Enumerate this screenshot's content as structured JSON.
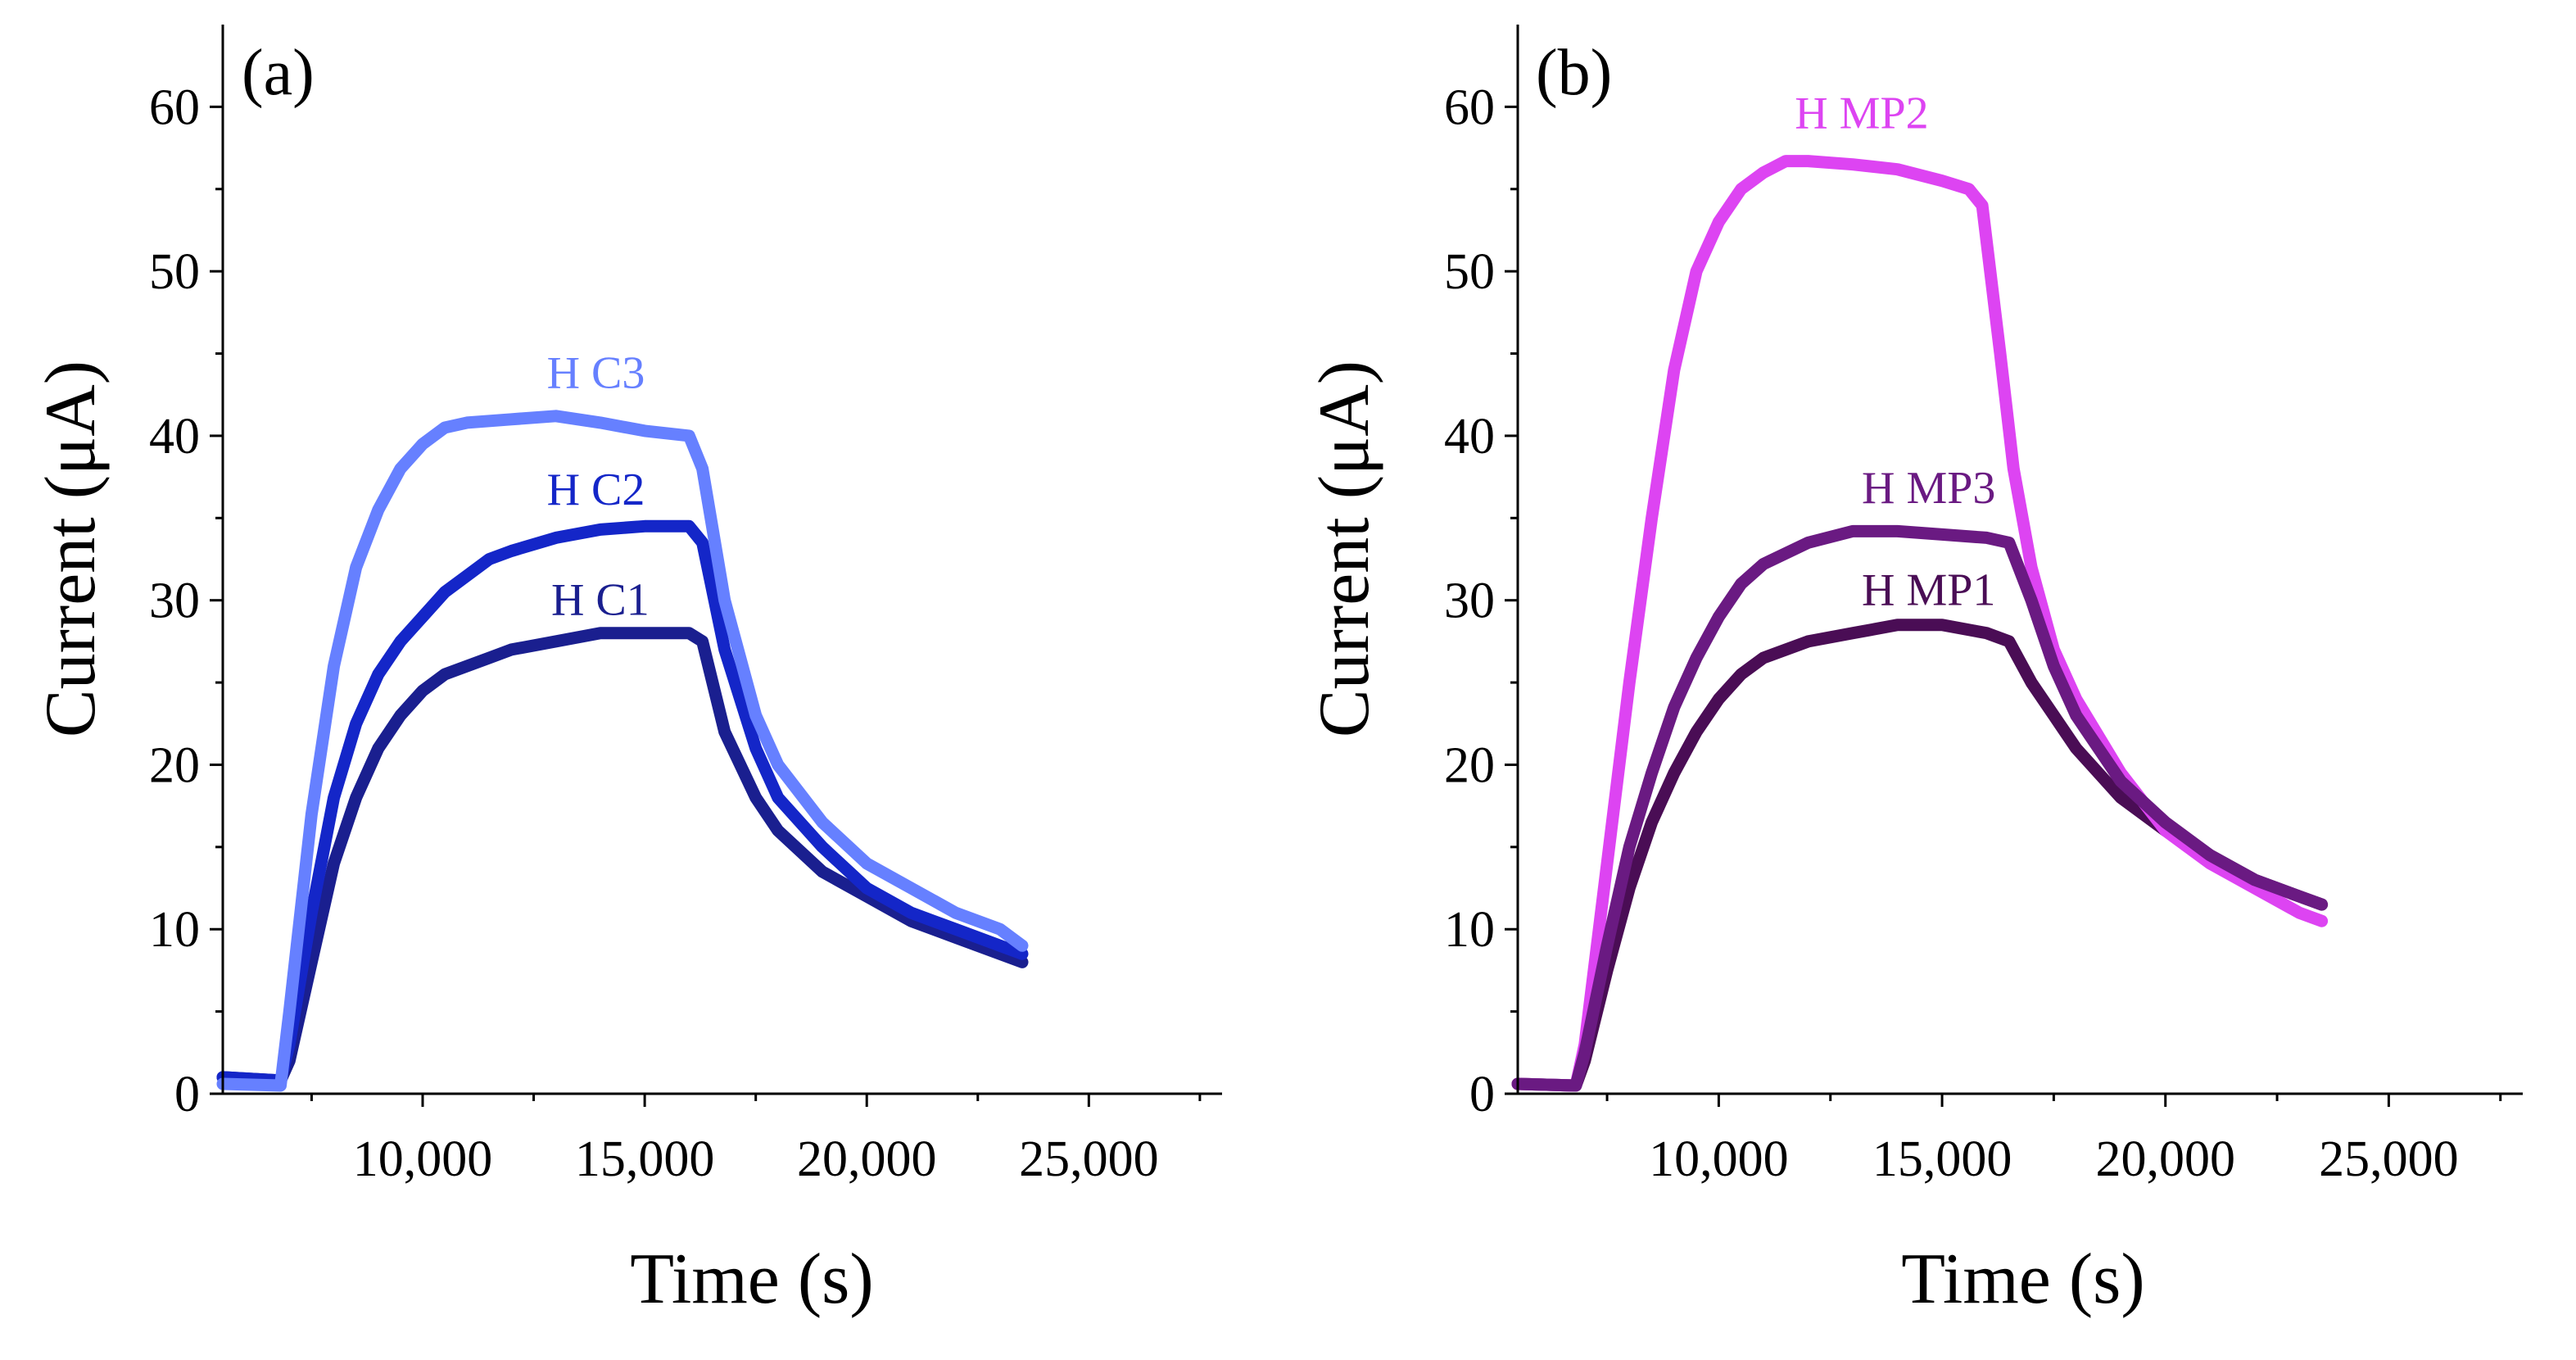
{
  "chart_data": [
    {
      "type": "line",
      "panel_label": "(a)",
      "xlabel": "Time (s)",
      "ylabel": "Current (μA)",
      "xlim": [
        5500,
        28000
      ],
      "ylim": [
        0,
        65
      ],
      "xticks": [
        10000,
        15000,
        20000,
        25000
      ],
      "xtick_labels": [
        "10,000",
        "15,000",
        "20,000",
        "25,000"
      ],
      "yticks": [
        0,
        10,
        20,
        30,
        40,
        50,
        60
      ],
      "ytick_labels": [
        "0",
        "10",
        "20",
        "30",
        "40",
        "50",
        "60"
      ],
      "grid": false,
      "legend": "none",
      "series": [
        {
          "name": "H C1",
          "color": "#1a1f8f",
          "label_at": [
            14000,
            30
          ],
          "points": [
            [
              5500,
              1.0
            ],
            [
              6800,
              0.8
            ],
            [
              7000,
              2
            ],
            [
              7500,
              8
            ],
            [
              8000,
              14
            ],
            [
              8500,
              18
            ],
            [
              9000,
              21
            ],
            [
              9500,
              23
            ],
            [
              10000,
              24.5
            ],
            [
              10500,
              25.5
            ],
            [
              11000,
              26
            ],
            [
              11500,
              26.5
            ],
            [
              12000,
              27
            ],
            [
              13000,
              27.5
            ],
            [
              14000,
              28
            ],
            [
              15000,
              28
            ],
            [
              16000,
              28
            ],
            [
              16300,
              27.5
            ],
            [
              16800,
              22
            ],
            [
              17500,
              18
            ],
            [
              18000,
              16
            ],
            [
              19000,
              13.5
            ],
            [
              20000,
              12
            ],
            [
              21000,
              10.5
            ],
            [
              22000,
              9.5
            ],
            [
              23000,
              8.5
            ],
            [
              23500,
              8
            ]
          ]
        },
        {
          "name": "H C2",
          "color": "#1426c8",
          "label_at": [
            13900,
            36.7
          ],
          "points": [
            [
              5500,
              1.0
            ],
            [
              6800,
              0.8
            ],
            [
              7000,
              3
            ],
            [
              7500,
              11
            ],
            [
              8000,
              18
            ],
            [
              8500,
              22.5
            ],
            [
              9000,
              25.5
            ],
            [
              9500,
              27.5
            ],
            [
              10000,
              29
            ],
            [
              10500,
              30.5
            ],
            [
              11000,
              31.5
            ],
            [
              11500,
              32.5
            ],
            [
              12000,
              33
            ],
            [
              13000,
              33.8
            ],
            [
              14000,
              34.3
            ],
            [
              15000,
              34.5
            ],
            [
              16000,
              34.5
            ],
            [
              16300,
              33.5
            ],
            [
              16800,
              27
            ],
            [
              17500,
              21
            ],
            [
              18000,
              18
            ],
            [
              19000,
              15
            ],
            [
              20000,
              12.5
            ],
            [
              21000,
              11
            ],
            [
              22000,
              10
            ],
            [
              23000,
              9
            ],
            [
              23500,
              8.5
            ]
          ]
        },
        {
          "name": "H C3",
          "color": "#6680ff",
          "label_at": [
            13900,
            43.8
          ],
          "points": [
            [
              5500,
              0.6
            ],
            [
              6800,
              0.5
            ],
            [
              7000,
              5
            ],
            [
              7500,
              17
            ],
            [
              8000,
              26
            ],
            [
              8500,
              32
            ],
            [
              9000,
              35.5
            ],
            [
              9500,
              38
            ],
            [
              10000,
              39.5
            ],
            [
              10500,
              40.5
            ],
            [
              11000,
              40.8
            ],
            [
              12000,
              41
            ],
            [
              13000,
              41.2
            ],
            [
              14000,
              40.8
            ],
            [
              15000,
              40.3
            ],
            [
              16000,
              40
            ],
            [
              16300,
              38
            ],
            [
              16800,
              30
            ],
            [
              17500,
              23
            ],
            [
              18000,
              20
            ],
            [
              19000,
              16.5
            ],
            [
              20000,
              14
            ],
            [
              21000,
              12.5
            ],
            [
              22000,
              11
            ],
            [
              23000,
              10
            ],
            [
              23500,
              9
            ]
          ]
        }
      ]
    },
    {
      "type": "line",
      "panel_label": "(b)",
      "xlabel": "Time (s)",
      "ylabel": "Current (μA)",
      "xlim": [
        5500,
        28000
      ],
      "ylim": [
        0,
        65
      ],
      "xticks": [
        10000,
        15000,
        20000,
        25000
      ],
      "xtick_labels": [
        "10,000",
        "15,000",
        "20,000",
        "25,000"
      ],
      "yticks": [
        0,
        10,
        20,
        30,
        40,
        50,
        60
      ],
      "ytick_labels": [
        "0",
        "10",
        "20",
        "30",
        "40",
        "50",
        "60"
      ],
      "grid": false,
      "legend": "none",
      "series": [
        {
          "name": "H MP1",
          "color": "#4a0d55",
          "label_at": [
            14700,
            30.6
          ],
          "points": [
            [
              5500,
              0.6
            ],
            [
              6800,
              0.5
            ],
            [
              7000,
              2
            ],
            [
              7500,
              7.5
            ],
            [
              8000,
              12.5
            ],
            [
              8500,
              16.5
            ],
            [
              9000,
              19.5
            ],
            [
              9500,
              22
            ],
            [
              10000,
              24
            ],
            [
              10500,
              25.5
            ],
            [
              11000,
              26.5
            ],
            [
              12000,
              27.5
            ],
            [
              13000,
              28
            ],
            [
              14000,
              28.5
            ],
            [
              15000,
              28.5
            ],
            [
              16000,
              28
            ],
            [
              16500,
              27.5
            ],
            [
              17000,
              25
            ],
            [
              17500,
              23
            ],
            [
              18000,
              21
            ],
            [
              19000,
              18
            ],
            [
              20000,
              16
            ],
            [
              21000,
              14.5
            ],
            [
              22000,
              13
            ],
            [
              23000,
              12
            ],
            [
              23500,
              11.5
            ]
          ]
        },
        {
          "name": "H MP2",
          "color": "#dd44f2",
          "label_at": [
            13200,
            59.6
          ],
          "points": [
            [
              5500,
              0.6
            ],
            [
              6800,
              0.5
            ],
            [
              7000,
              3
            ],
            [
              7500,
              14
            ],
            [
              8000,
              25
            ],
            [
              8500,
              35
            ],
            [
              9000,
              44
            ],
            [
              9500,
              50
            ],
            [
              10000,
              53
            ],
            [
              10500,
              55
            ],
            [
              11000,
              56
            ],
            [
              11500,
              56.7
            ],
            [
              12000,
              56.7
            ],
            [
              13000,
              56.5
            ],
            [
              14000,
              56.2
            ],
            [
              15000,
              55.5
            ],
            [
              15600,
              55
            ],
            [
              15900,
              54
            ],
            [
              16300,
              45
            ],
            [
              16600,
              38
            ],
            [
              17000,
              32
            ],
            [
              17500,
              27
            ],
            [
              18000,
              24
            ],
            [
              19000,
              19.5
            ],
            [
              20000,
              16
            ],
            [
              21000,
              14
            ],
            [
              22000,
              12.5
            ],
            [
              23000,
              11
            ],
            [
              23500,
              10.5
            ]
          ]
        },
        {
          "name": "H MP3",
          "color": "#6a1a82",
          "label_at": [
            14700,
            36.8
          ],
          "points": [
            [
              5500,
              0.6
            ],
            [
              6800,
              0.5
            ],
            [
              7000,
              2.5
            ],
            [
              7500,
              9
            ],
            [
              8000,
              15
            ],
            [
              8500,
              19.5
            ],
            [
              9000,
              23.5
            ],
            [
              9500,
              26.5
            ],
            [
              10000,
              29
            ],
            [
              10500,
              31
            ],
            [
              11000,
              32.2
            ],
            [
              12000,
              33.5
            ],
            [
              13000,
              34.2
            ],
            [
              14000,
              34.2
            ],
            [
              15000,
              34
            ],
            [
              16000,
              33.8
            ],
            [
              16500,
              33.5
            ],
            [
              17000,
              30
            ],
            [
              17500,
              26
            ],
            [
              18000,
              23
            ],
            [
              19000,
              19
            ],
            [
              20000,
              16.5
            ],
            [
              21000,
              14.5
            ],
            [
              22000,
              13
            ],
            [
              23000,
              12
            ],
            [
              23500,
              11.5
            ]
          ]
        }
      ]
    }
  ]
}
